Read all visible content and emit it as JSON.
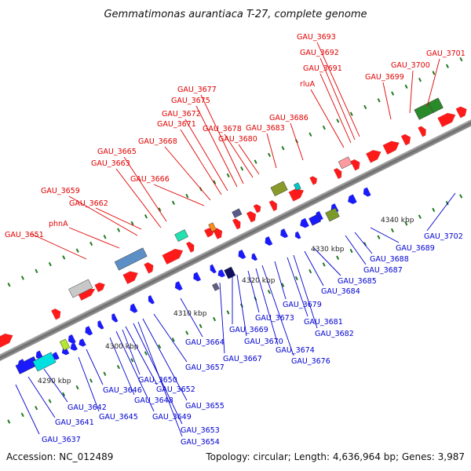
{
  "title": "Gemmatimonas aurantiaca T-27, complete genome",
  "footer": {
    "accession": "Accession: NC_012489",
    "info": "Topology: circular; Length: 4,636,964 bp; Genes: 3,987"
  },
  "colors": {
    "top_labels": "#e00000",
    "bottom_labels": "#0000d0",
    "ruler": "#1f7a1f"
  },
  "scale_labels": [
    "4290 kbp",
    "4300 kbp",
    "4310 kbp",
    "4320 kbp",
    "4330 kbp",
    "4340 kbp"
  ],
  "labels_top": [
    "GAU_3651",
    "phnA",
    "GAU_3659",
    "GAU_3662",
    "GAU_3663",
    "GAU_3665",
    "GAU_3666",
    "GAU_3668",
    "GAU_3671",
    "GAU_3672",
    "GAU_3675",
    "GAU_3677",
    "GAU_3678",
    "GAU_3680",
    "GAU_3683",
    "GAU_3686",
    "rluA",
    "GAU_3691",
    "GAU_3692",
    "GAU_3693",
    "GAU_3699",
    "GAU_3700",
    "GAU_3701"
  ],
  "labels_bottom": [
    "GAU_3637",
    "GAU_3641",
    "GAU_3642",
    "GAU_3645",
    "GAU_3646",
    "GAU_3648",
    "GAU_3649",
    "GAU_3650",
    "GAU_3652",
    "GAU_3653",
    "GAU_3654",
    "GAU_3655",
    "GAU_3657",
    "GAU_3664",
    "GAU_3667",
    "GAU_3669",
    "GAU_3670",
    "GAU_3673",
    "GAU_3674",
    "GAU_3676",
    "GAU_3679",
    "GAU_3681",
    "GAU_3682",
    "GAU_3684",
    "GAU_3685",
    "GAU_3687",
    "GAU_3688",
    "GAU_3689",
    "GAU_3702"
  ]
}
